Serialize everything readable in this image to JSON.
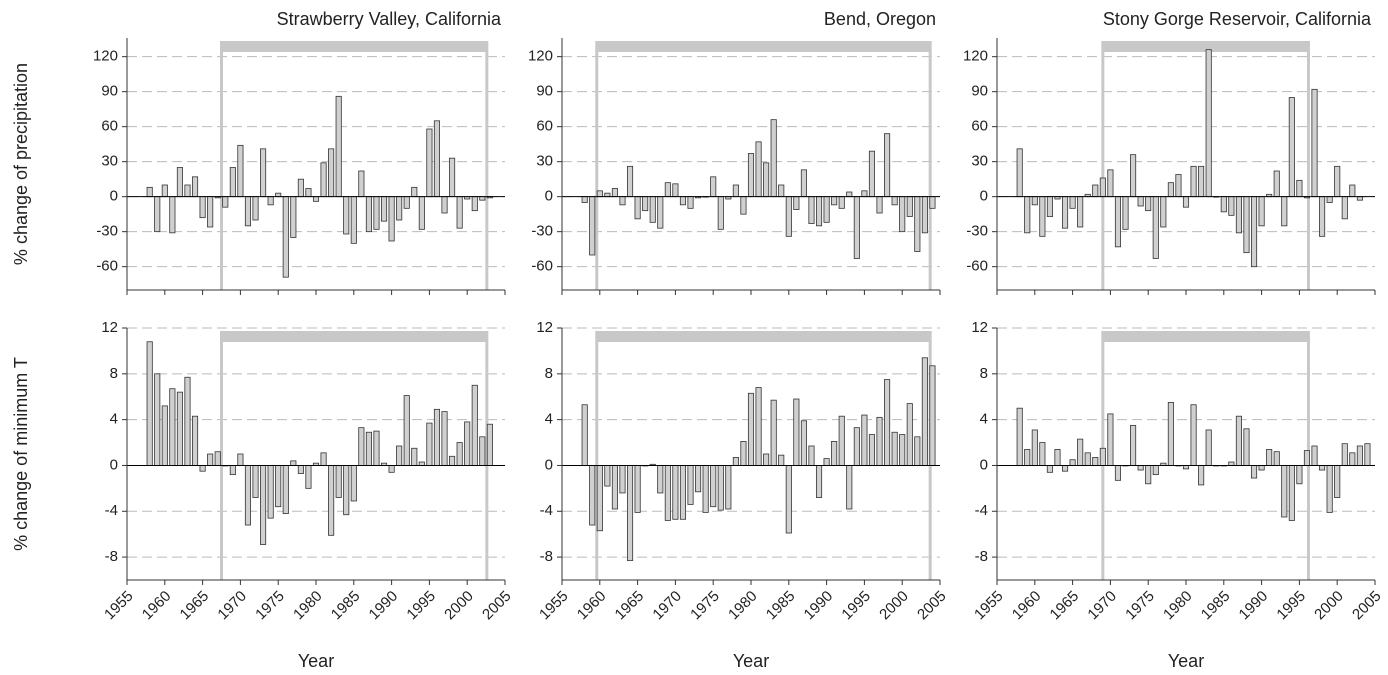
{
  "chart_data": [
    {
      "type": "bar",
      "title": "Strawberry Valley, California",
      "ylabel": "% change of precipitation",
      "x": [
        1958,
        1959,
        1960,
        1961,
        1962,
        1963,
        1964,
        1965,
        1966,
        1967,
        1968,
        1969,
        1970,
        1971,
        1972,
        1973,
        1974,
        1975,
        1976,
        1977,
        1978,
        1979,
        1980,
        1981,
        1982,
        1983,
        1984,
        1985,
        1986,
        1987,
        1988,
        1989,
        1990,
        1991,
        1992,
        1993,
        1994,
        1995,
        1996,
        1997,
        1998,
        1999,
        2000,
        2001,
        2002,
        2003
      ],
      "values": [
        8,
        -30,
        10,
        -31,
        25,
        10,
        17,
        -18,
        -26,
        -1,
        -9,
        25,
        44,
        -25,
        -20,
        41,
        -7,
        3,
        -69,
        -35,
        15,
        7,
        -4,
        29,
        41,
        86,
        -32,
        -40,
        22,
        -30,
        -28,
        -21,
        -38,
        -20,
        -10,
        8,
        -28,
        58,
        65,
        -14,
        33,
        -27,
        -2,
        -12,
        -3,
        -1
      ],
      "highlight_period": [
        1967.5,
        2002.6
      ],
      "xlim": [
        1955,
        2005
      ],
      "xticks": [
        1955,
        1960,
        1965,
        1970,
        1975,
        1980,
        1985,
        1990,
        1995,
        2000,
        2005
      ],
      "xtick_labels": false,
      "ylim": [
        -80,
        136
      ],
      "yticks": [
        -60,
        -30,
        0,
        30,
        60,
        90,
        120
      ],
      "grid": true,
      "color": "#d0d0d0"
    },
    {
      "type": "bar",
      "title": "Bend, Oregon",
      "x": [
        1958,
        1959,
        1960,
        1961,
        1962,
        1963,
        1964,
        1965,
        1966,
        1967,
        1968,
        1969,
        1970,
        1971,
        1972,
        1973,
        1974,
        1975,
        1976,
        1977,
        1978,
        1979,
        1980,
        1981,
        1982,
        1983,
        1984,
        1985,
        1986,
        1987,
        1988,
        1989,
        1990,
        1991,
        1992,
        1993,
        1994,
        1995,
        1996,
        1997,
        1998,
        1999,
        2000,
        2001,
        2002,
        2003,
        2004
      ],
      "values": [
        -5,
        -50,
        5,
        3,
        7,
        -7,
        26,
        -19,
        -12,
        -22,
        -27,
        12,
        11,
        -7,
        -10,
        -1,
        0,
        17,
        -28,
        -2,
        10,
        -15,
        37,
        47,
        29,
        66,
        10,
        -34,
        -11,
        23,
        -23,
        -25,
        -22,
        -7,
        -10,
        4,
        -53,
        5,
        39,
        -14,
        54,
        -7,
        -30,
        -17,
        -47,
        -31,
        -10
      ],
      "highlight_period": [
        1959.6,
        2003.7
      ],
      "xlim": [
        1955,
        2005
      ],
      "xticks": [
        1955,
        1960,
        1965,
        1970,
        1975,
        1980,
        1985,
        1990,
        1995,
        2000,
        2005
      ],
      "xtick_labels": false,
      "ylim": [
        -80,
        136
      ],
      "yticks": [
        -60,
        -30,
        0,
        30,
        60,
        90,
        120
      ],
      "grid": true,
      "color": "#d0d0d0"
    },
    {
      "type": "bar",
      "title": "Stony Gorge Reservoir, California",
      "x": [
        1958,
        1959,
        1960,
        1961,
        1962,
        1963,
        1964,
        1965,
        1966,
        1967,
        1968,
        1969,
        1970,
        1971,
        1972,
        1973,
        1974,
        1975,
        1976,
        1977,
        1978,
        1979,
        1980,
        1981,
        1982,
        1983,
        1984,
        1985,
        1986,
        1987,
        1988,
        1989,
        1990,
        1991,
        1992,
        1993,
        1994,
        1995,
        1996,
        1997,
        1998,
        1999,
        2000,
        2001,
        2002,
        2003
      ],
      "values": [
        41,
        -31,
        -7,
        -34,
        -17,
        -2,
        -27,
        -10,
        -26,
        2,
        10,
        16,
        23,
        -43,
        -28,
        36,
        -8,
        -12,
        -53,
        -26,
        12,
        19,
        -9,
        26,
        26,
        126,
        0,
        -13,
        -16,
        -31,
        -48,
        -60,
        -25,
        2,
        22,
        -25,
        85,
        14,
        -1,
        92,
        -34,
        -5,
        26,
        -19,
        10,
        -3
      ],
      "highlight_period": [
        1969,
        1996.2
      ],
      "xlim": [
        1955,
        2005
      ],
      "xticks": [
        1955,
        1960,
        1965,
        1970,
        1975,
        1980,
        1985,
        1990,
        1995,
        2000,
        2005
      ],
      "xtick_labels": false,
      "ylim": [
        -80,
        136
      ],
      "yticks": [
        -60,
        -30,
        0,
        30,
        60,
        90,
        120
      ],
      "grid": true,
      "color": "#d0d0d0"
    },
    {
      "type": "bar",
      "ylabel": "% change of minimum T",
      "xlabel": "Year",
      "x": [
        1958,
        1959,
        1960,
        1961,
        1962,
        1963,
        1964,
        1965,
        1966,
        1967,
        1968,
        1969,
        1970,
        1971,
        1972,
        1973,
        1974,
        1975,
        1976,
        1977,
        1978,
        1979,
        1980,
        1981,
        1982,
        1983,
        1984,
        1985,
        1986,
        1987,
        1988,
        1989,
        1990,
        1991,
        1992,
        1993,
        1994,
        1995,
        1996,
        1997,
        1998,
        1999,
        2000,
        2001,
        2002,
        2003
      ],
      "values": [
        10.8,
        8.0,
        5.2,
        6.7,
        6.4,
        7.7,
        4.3,
        -0.5,
        1.0,
        1.2,
        0,
        -0.8,
        1.0,
        -5.2,
        -2.8,
        -6.9,
        -4.6,
        -3.6,
        -4.2,
        0.4,
        -0.7,
        -2.0,
        0.2,
        1.1,
        -6.1,
        -2.8,
        -4.3,
        -3.1,
        3.3,
        2.9,
        3.0,
        0.2,
        -0.6,
        1.7,
        6.1,
        1.5,
        0.3,
        3.7,
        4.9,
        4.7,
        0.8,
        2.0,
        3.8,
        7.0,
        2.5,
        3.6
      ],
      "highlight_period": [
        1967.5,
        2002.6
      ],
      "xlim": [
        1955,
        2005
      ],
      "xticks": [
        1955,
        1960,
        1965,
        1970,
        1975,
        1980,
        1985,
        1990,
        1995,
        2000,
        2005
      ],
      "xtick_labels": true,
      "ylim": [
        -10,
        12
      ],
      "yticks": [
        -8,
        -4,
        0,
        4,
        8,
        12
      ],
      "grid": true,
      "color": "#d0d0d0"
    },
    {
      "type": "bar",
      "xlabel": "Year",
      "x": [
        1958,
        1959,
        1960,
        1961,
        1962,
        1963,
        1964,
        1965,
        1966,
        1967,
        1968,
        1969,
        1970,
        1971,
        1972,
        1973,
        1974,
        1975,
        1976,
        1977,
        1978,
        1979,
        1980,
        1981,
        1982,
        1983,
        1984,
        1985,
        1986,
        1987,
        1988,
        1989,
        1990,
        1991,
        1992,
        1993,
        1994,
        1995,
        1996,
        1997,
        1998,
        1999,
        2000,
        2001,
        2002,
        2003,
        2004
      ],
      "values": [
        5.3,
        -5.2,
        -5.7,
        -1.8,
        -3.8,
        -2.4,
        -8.3,
        -4.1,
        0,
        0.1,
        -2.4,
        -4.8,
        -4.7,
        -4.7,
        -3.4,
        -2.3,
        -4.1,
        -3.6,
        -3.9,
        -3.8,
        0.7,
        2.1,
        6.3,
        6.8,
        1.0,
        5.7,
        0.9,
        -5.9,
        5.8,
        3.9,
        1.7,
        -2.8,
        0.6,
        2.1,
        4.3,
        -3.8,
        3.3,
        4.4,
        2.7,
        4.2,
        7.5,
        2.9,
        2.7,
        5.4,
        2.5,
        9.4,
        8.7
      ],
      "highlight_period": [
        1959.6,
        2003.7
      ],
      "xlim": [
        1955,
        2005
      ],
      "xticks": [
        1955,
        1960,
        1965,
        1970,
        1975,
        1980,
        1985,
        1990,
        1995,
        2000,
        2005
      ],
      "xtick_labels": true,
      "ylim": [
        -10,
        12
      ],
      "yticks": [
        -8,
        -4,
        0,
        4,
        8,
        12
      ],
      "grid": true,
      "color": "#d0d0d0"
    },
    {
      "type": "bar",
      "xlabel": "Year",
      "x": [
        1958,
        1959,
        1960,
        1961,
        1962,
        1963,
        1964,
        1965,
        1966,
        1967,
        1968,
        1969,
        1970,
        1971,
        1972,
        1973,
        1974,
        1975,
        1976,
        1977,
        1978,
        1979,
        1980,
        1981,
        1982,
        1983,
        1984,
        1985,
        1986,
        1987,
        1988,
        1989,
        1990,
        1991,
        1992,
        1993,
        1994,
        1995,
        1996,
        1997,
        1998,
        1999,
        2000,
        2001,
        2002,
        2003,
        2004
      ],
      "values": [
        5.0,
        1.4,
        3.1,
        2.0,
        -0.6,
        1.4,
        -0.5,
        0.5,
        2.3,
        1.1,
        0.7,
        1.5,
        4.5,
        -1.3,
        0,
        3.5,
        -0.4,
        -1.6,
        -0.8,
        0.2,
        5.5,
        0,
        -0.3,
        5.3,
        -1.7,
        3.1,
        0,
        0,
        0.3,
        4.3,
        3.2,
        -1.1,
        -0.4,
        1.4,
        1.2,
        -4.5,
        -4.8,
        -1.6,
        1.3,
        1.7,
        -0.4,
        -4.1,
        -2.8,
        1.9,
        1.1,
        1.7,
        1.9
      ],
      "highlight_period": [
        1969,
        1996.2
      ],
      "xlim": [
        1955,
        2005
      ],
      "xticks": [
        1955,
        1960,
        1965,
        1970,
        1975,
        1980,
        1985,
        1990,
        1995,
        2000,
        2005
      ],
      "xtick_labels": true,
      "ylim": [
        -10,
        12
      ],
      "yticks": [
        -8,
        -4,
        0,
        4,
        8,
        12
      ],
      "grid": true,
      "color": "#d0d0d0"
    }
  ]
}
